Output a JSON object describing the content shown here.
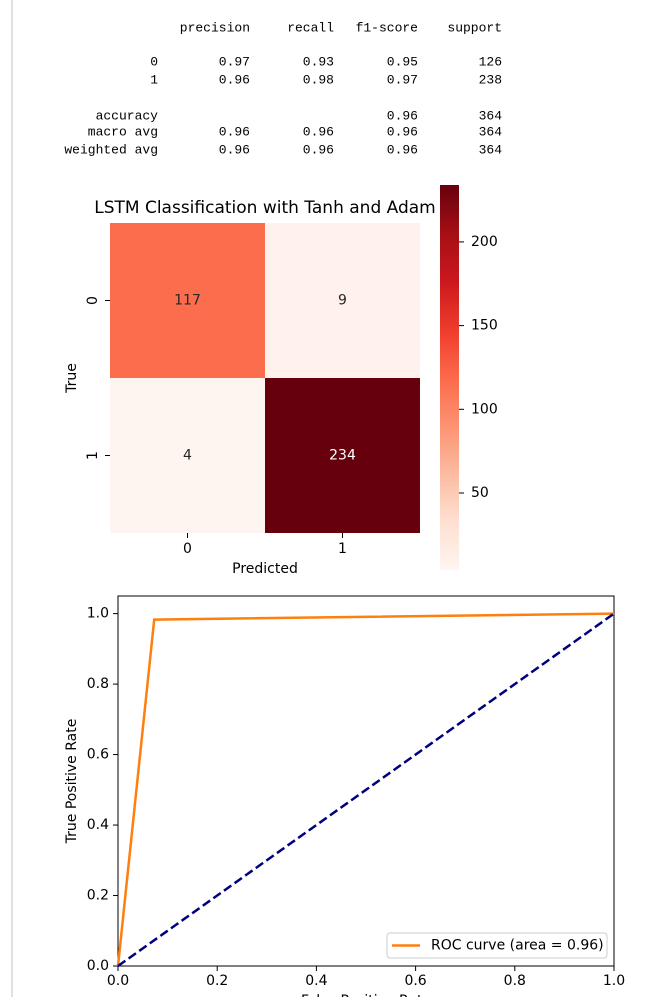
{
  "report": {
    "columns": [
      "precision",
      "recall",
      "f1-score",
      "support"
    ],
    "rows": [
      [
        "0",
        0.97,
        0.93,
        0.95,
        126
      ],
      [
        "1",
        0.96,
        0.98,
        0.97,
        238
      ],
      [
        "accuracy",
        null,
        null,
        0.96,
        364
      ],
      [
        "macro avg",
        0.96,
        0.96,
        0.96,
        364
      ],
      [
        "weighted avg",
        0.96,
        0.96,
        0.96,
        364
      ]
    ]
  },
  "chart_data": [
    {
      "type": "heatmap",
      "title": "LSTM Classification with Tanh and Adam",
      "xlabel": "Predicted",
      "ylabel": "True",
      "x_categories": [
        "0",
        "1"
      ],
      "y_categories": [
        "0",
        "1"
      ],
      "values": [
        [
          117,
          9
        ],
        [
          4,
          234
        ]
      ],
      "cmap": "Reds",
      "clim": [
        4,
        234
      ],
      "cticks": [
        50,
        100,
        150,
        200
      ]
    },
    {
      "type": "line",
      "xlabel": "False Positive Rate",
      "ylabel": "True Positive Rate",
      "xlim": [
        0,
        1
      ],
      "ylim": [
        0,
        1.05
      ],
      "xticks": [
        {
          "value": 0,
          "label": "0.0"
        },
        {
          "value": 0.2,
          "label": "0.2"
        },
        {
          "value": 0.4,
          "label": "0.4"
        },
        {
          "value": 0.6,
          "label": "0.6"
        },
        {
          "value": 0.8,
          "label": "0.8"
        },
        {
          "value": 1,
          "label": "1.0"
        }
      ],
      "yticks": [
        {
          "value": 0,
          "label": "0.0"
        },
        {
          "value": 0.2,
          "label": "0.2"
        },
        {
          "value": 0.4,
          "label": "0.4"
        },
        {
          "value": 0.6,
          "label": "0.6"
        },
        {
          "value": 0.8,
          "label": "0.8"
        },
        {
          "value": 1,
          "label": "1.0"
        }
      ],
      "legend": "lower right",
      "series": [
        {
          "name": "ROC curve (area = 0.96)",
          "color": "#ff7f0e",
          "x": [
            0,
            0.073,
            1
          ],
          "values": [
            0,
            0.983,
            1
          ]
        },
        {
          "color": "#000080",
          "dash": true,
          "x": [
            0,
            1
          ],
          "values": [
            0,
            1
          ]
        }
      ]
    }
  ]
}
